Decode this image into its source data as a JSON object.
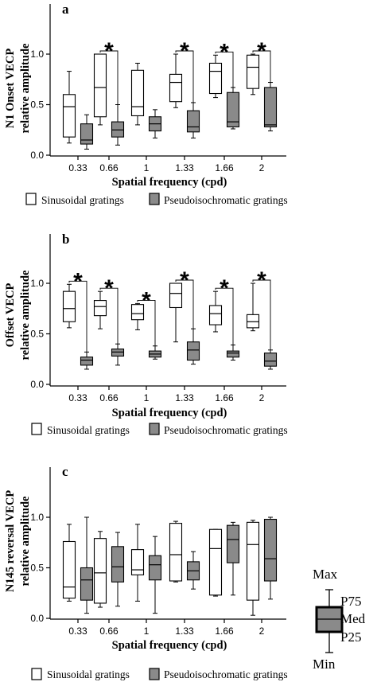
{
  "chart_data": [
    {
      "type": "boxplot",
      "panel_label": "a",
      "ylabel_lines": [
        "N1 Onset VECP",
        "relative amplitude"
      ],
      "xlabel": "Spatial frequency (cpd)",
      "categories": [
        "0.33",
        "0.66",
        "1",
        "1.33",
        "1.66",
        "2"
      ],
      "ylim": [
        0,
        1.0
      ],
      "yticks": [
        "0.0",
        "0.5",
        "1.0"
      ],
      "series": [
        {
          "name": "Sinusoidal gratings",
          "color": "#ffffff",
          "boxes": [
            {
              "min": 0.12,
              "p25": 0.18,
              "median": 0.48,
              "p75": 0.6,
              "max": 0.83
            },
            {
              "min": 0.3,
              "p25": 0.38,
              "median": 0.67,
              "p75": 1.0,
              "max": 1.0
            },
            {
              "min": 0.3,
              "p25": 0.39,
              "median": 0.48,
              "p75": 0.84,
              "max": 0.91
            },
            {
              "min": 0.47,
              "p25": 0.53,
              "median": 0.72,
              "p75": 0.8,
              "max": 1.0
            },
            {
              "min": 0.57,
              "p25": 0.61,
              "median": 0.83,
              "p75": 0.91,
              "max": 0.99
            },
            {
              "min": 0.6,
              "p25": 0.66,
              "median": 0.87,
              "p75": 0.99,
              "max": 1.0
            }
          ]
        },
        {
          "name": "Pseudoisochromatic gratings",
          "color": "#8a8a8a",
          "boxes": [
            {
              "min": 0.06,
              "p25": 0.11,
              "median": 0.15,
              "p75": 0.31,
              "max": 0.4
            },
            {
              "min": 0.1,
              "p25": 0.18,
              "median": 0.25,
              "p75": 0.33,
              "max": 0.5
            },
            {
              "min": 0.17,
              "p25": 0.24,
              "median": 0.31,
              "p75": 0.38,
              "max": 0.45
            },
            {
              "min": 0.17,
              "p25": 0.23,
              "median": 0.28,
              "p75": 0.44,
              "max": 0.52
            },
            {
              "min": 0.26,
              "p25": 0.28,
              "median": 0.33,
              "p75": 0.62,
              "max": 0.67
            },
            {
              "min": 0.24,
              "p25": 0.28,
              "median": 0.3,
              "p75": 0.67,
              "max": 0.72
            }
          ]
        }
      ],
      "significance": [
        "",
        "*",
        "",
        "*",
        "*",
        "*"
      ]
    },
    {
      "type": "boxplot",
      "panel_label": "b",
      "ylabel_lines": [
        "Offset VECP",
        "relative amplitude"
      ],
      "xlabel": "Spatial frequency (cpd)",
      "categories": [
        "0.33",
        "0.66",
        "1",
        "1.33",
        "1.66",
        "2"
      ],
      "ylim": [
        0,
        1.0
      ],
      "yticks": [
        "0.0",
        "0.5",
        "1.0"
      ],
      "series": [
        {
          "name": "Sinusoidal gratings",
          "color": "#ffffff",
          "boxes": [
            {
              "min": 0.56,
              "p25": 0.62,
              "median": 0.75,
              "p75": 0.92,
              "max": 0.99
            },
            {
              "min": 0.55,
              "p25": 0.68,
              "median": 0.77,
              "p75": 0.83,
              "max": 0.92
            },
            {
              "min": 0.54,
              "p25": 0.64,
              "median": 0.7,
              "p75": 0.79,
              "max": 0.8
            },
            {
              "min": 0.42,
              "p25": 0.76,
              "median": 0.9,
              "p75": 1.0,
              "max": 1.0
            },
            {
              "min": 0.52,
              "p25": 0.59,
              "median": 0.7,
              "p75": 0.78,
              "max": 0.92
            },
            {
              "min": 0.53,
              "p25": 0.56,
              "median": 0.62,
              "p75": 0.69,
              "max": 1.0
            }
          ]
        },
        {
          "name": "Pseudoisochromatic gratings",
          "color": "#8a8a8a",
          "boxes": [
            {
              "min": 0.15,
              "p25": 0.19,
              "median": 0.24,
              "p75": 0.27,
              "max": 0.32
            },
            {
              "min": 0.19,
              "p25": 0.28,
              "median": 0.32,
              "p75": 0.35,
              "max": 0.4
            },
            {
              "min": 0.25,
              "p25": 0.27,
              "median": 0.3,
              "p75": 0.33,
              "max": 0.38
            },
            {
              "min": 0.2,
              "p25": 0.24,
              "median": 0.34,
              "p75": 0.42,
              "max": 0.55
            },
            {
              "min": 0.24,
              "p25": 0.27,
              "median": 0.31,
              "p75": 0.33,
              "max": 0.39
            },
            {
              "min": 0.15,
              "p25": 0.18,
              "median": 0.23,
              "p75": 0.31,
              "max": 0.34
            }
          ]
        }
      ],
      "significance": [
        "*",
        "*",
        "*",
        "*",
        "*",
        "*"
      ]
    },
    {
      "type": "boxplot",
      "panel_label": "c",
      "ylabel_lines": [
        "N145 reversal VECP",
        "relative amplitude"
      ],
      "xlabel": "Spatial frequency (cpd)",
      "categories": [
        "0.33",
        "0.66",
        "1",
        "1.33",
        "1.66",
        "2"
      ],
      "ylim": [
        0,
        1.0
      ],
      "yticks": [
        "0.0",
        "0.5",
        "1.0"
      ],
      "series": [
        {
          "name": "Sinusoidal gratings",
          "color": "#ffffff",
          "boxes": [
            {
              "min": 0.17,
              "p25": 0.2,
              "median": 0.31,
              "p75": 0.76,
              "max": 0.93
            },
            {
              "min": 0.11,
              "p25": 0.15,
              "median": 0.45,
              "p75": 0.79,
              "max": 0.86
            },
            {
              "min": 0.17,
              "p25": 0.43,
              "median": 0.48,
              "p75": 0.68,
              "max": 0.93
            },
            {
              "min": 0.36,
              "p25": 0.37,
              "median": 0.63,
              "p75": 0.94,
              "max": 0.96
            },
            {
              "min": 0.22,
              "p25": 0.23,
              "median": 0.69,
              "p75": 0.88,
              "max": 0.88
            },
            {
              "min": 0.03,
              "p25": 0.18,
              "median": 0.73,
              "p75": 0.95,
              "max": 0.97
            }
          ]
        },
        {
          "name": "Pseudoisochromatic gratings",
          "color": "#8a8a8a",
          "boxes": [
            {
              "min": 0.05,
              "p25": 0.18,
              "median": 0.38,
              "p75": 0.5,
              "max": 1.0
            },
            {
              "min": 0.12,
              "p25": 0.36,
              "median": 0.51,
              "p75": 0.71,
              "max": 0.85
            },
            {
              "min": 0.05,
              "p25": 0.38,
              "median": 0.53,
              "p75": 0.62,
              "max": 0.81
            },
            {
              "min": 0.29,
              "p25": 0.38,
              "median": 0.47,
              "p75": 0.56,
              "max": 0.66
            },
            {
              "min": 0.23,
              "p25": 0.55,
              "median": 0.78,
              "p75": 0.92,
              "max": 0.95
            },
            {
              "min": 0.19,
              "p25": 0.37,
              "median": 0.59,
              "p75": 0.98,
              "max": 1.0
            }
          ]
        }
      ],
      "significance": [
        "",
        "",
        "",
        "",
        "",
        ""
      ]
    }
  ],
  "legend": {
    "items": [
      {
        "label": "Sinusoidal gratings",
        "color": "#ffffff"
      },
      {
        "label": "Pseudoisochromatic gratings",
        "color": "#8a8a8a"
      }
    ]
  },
  "key": {
    "max_label": "Max",
    "p75_label": "P75",
    "med_label": "Med",
    "p25_label": "P25",
    "min_label": "Min",
    "fill": "#8a8a8a"
  }
}
